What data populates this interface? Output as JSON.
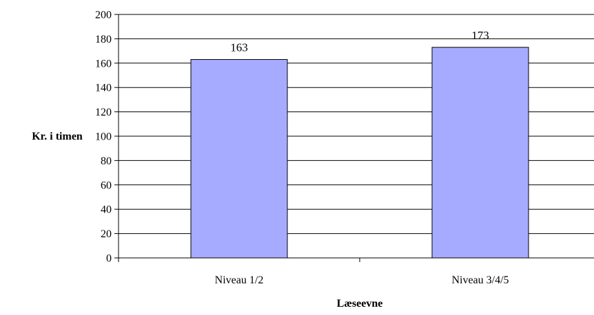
{
  "chart_data": {
    "type": "bar",
    "title": "",
    "xlabel": "Læseevne",
    "ylabel": "Kr. i timen",
    "categories": [
      "Niveau 1/2",
      "Niveau 3/4/5"
    ],
    "values": [
      163,
      173
    ],
    "data_labels": [
      "163",
      "173"
    ],
    "ylim": [
      0,
      200
    ],
    "ytick_step": 20,
    "yticks": [
      "0",
      "20",
      "40",
      "60",
      "80",
      "100",
      "120",
      "140",
      "160",
      "180",
      "200"
    ],
    "grid": true,
    "legend": "none",
    "colors": {
      "bar_fill": "#a7abff",
      "bar_stroke": "#000000",
      "grid": "#000000",
      "axis": "#000000"
    }
  }
}
